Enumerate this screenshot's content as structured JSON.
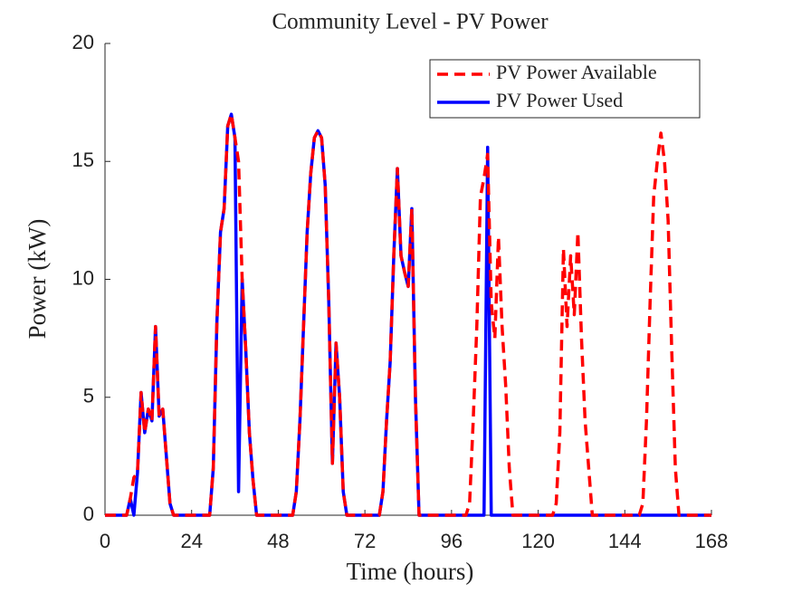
{
  "chart_data": {
    "type": "line",
    "title": "Community Level - PV Power",
    "x_label": "Time (hours)",
    "y_label": "Power (kW)",
    "x": [
      0,
      1,
      2,
      3,
      4,
      5,
      6,
      7,
      8,
      9,
      10,
      11,
      12,
      13,
      14,
      15,
      16,
      17,
      18,
      19,
      20,
      21,
      22,
      23,
      24,
      25,
      26,
      27,
      28,
      29,
      30,
      31,
      32,
      33,
      34,
      35,
      36,
      37,
      38,
      39,
      40,
      41,
      42,
      43,
      44,
      45,
      46,
      47,
      48,
      49,
      50,
      51,
      52,
      53,
      54,
      55,
      56,
      57,
      58,
      59,
      60,
      61,
      62,
      63,
      64,
      65,
      66,
      67,
      68,
      69,
      70,
      71,
      72,
      73,
      74,
      75,
      76,
      77,
      78,
      79,
      80,
      81,
      82,
      83,
      84,
      85,
      86,
      87,
      88,
      89,
      90,
      91,
      92,
      93,
      94,
      95,
      96,
      97,
      98,
      99,
      100,
      101,
      102,
      103,
      104,
      105,
      106,
      107,
      108,
      109,
      110,
      111,
      112,
      113,
      114,
      115,
      116,
      117,
      118,
      119,
      120,
      121,
      122,
      123,
      124,
      125,
      126,
      127,
      128,
      129,
      130,
      131,
      132,
      133,
      134,
      135,
      136,
      137,
      138,
      139,
      140,
      141,
      142,
      143,
      144,
      145,
      146,
      147,
      148,
      149,
      150,
      151,
      152,
      153,
      154,
      155,
      156,
      157,
      158,
      159,
      160,
      161,
      162,
      163,
      164,
      165,
      166,
      167,
      168
    ],
    "series": [
      {
        "name": "PV Power Available",
        "color": "#ff0000",
        "dash": true,
        "values": [
          0,
          0,
          0,
          0,
          0,
          0,
          0,
          0.7,
          1.6,
          1.8,
          5.2,
          3.5,
          4.5,
          4,
          8,
          4.2,
          4.5,
          2.5,
          0.5,
          0,
          0,
          0,
          0,
          0,
          0,
          0,
          0,
          0,
          0,
          0,
          2,
          8.2,
          12,
          13,
          16.5,
          17,
          16,
          15,
          10,
          7,
          3.5,
          1.5,
          0,
          0,
          0,
          0,
          0,
          0,
          0,
          0,
          0,
          0,
          0,
          1,
          4,
          8,
          12,
          14.5,
          16,
          16.3,
          16,
          14,
          9,
          2.2,
          7.3,
          5,
          1,
          0,
          0,
          0,
          0,
          0,
          0,
          0,
          0,
          0,
          0,
          1,
          4,
          6.5,
          11,
          14.7,
          11,
          10.3,
          9.7,
          13,
          5,
          0,
          0,
          0,
          0,
          0,
          0,
          0,
          0,
          0,
          0,
          0,
          0,
          0,
          0,
          0.5,
          4,
          8,
          13.5,
          14.3,
          15.3,
          9,
          7.5,
          11.8,
          8,
          5.5,
          2,
          0,
          0,
          0,
          0,
          0,
          0,
          0,
          0,
          0,
          0,
          0,
          0,
          0.5,
          3.5,
          11.3,
          8,
          11,
          8.5,
          12,
          7.5,
          4,
          2,
          0,
          0,
          0,
          0,
          0,
          0,
          0,
          0,
          0,
          0,
          0,
          0,
          0,
          0,
          0.5,
          4,
          9,
          13.5,
          15,
          16.2,
          15,
          12.5,
          7,
          2,
          0,
          0,
          0,
          0,
          0,
          0,
          0,
          0,
          0,
          0
        ]
      },
      {
        "name": "PV Power Used",
        "color": "#0000ff",
        "dash": false,
        "values": [
          0,
          0,
          0,
          0,
          0,
          0,
          0,
          0.7,
          0,
          1.8,
          5.2,
          3.5,
          4.5,
          4,
          8,
          4.2,
          4.5,
          2.5,
          0.5,
          0,
          0,
          0,
          0,
          0,
          0,
          0,
          0,
          0,
          0,
          0,
          2,
          8.2,
          12,
          13,
          16.5,
          17,
          16,
          1,
          10,
          7,
          3.5,
          1.5,
          0,
          0,
          0,
          0,
          0,
          0,
          0,
          0,
          0,
          0,
          0,
          1,
          4,
          8,
          12,
          14.5,
          16,
          16.3,
          16,
          14,
          9,
          2.2,
          7.3,
          5,
          1,
          0,
          0,
          0,
          0,
          0,
          0,
          0,
          0,
          0,
          0,
          1,
          4,
          6.5,
          11,
          14.7,
          11,
          10.3,
          9.7,
          13,
          5,
          0,
          0,
          0,
          0,
          0,
          0,
          0,
          0,
          0,
          0,
          0,
          0,
          0,
          0,
          0,
          0,
          0,
          0,
          0,
          15.6,
          0,
          0,
          0,
          0,
          0,
          0,
          0,
          0,
          0,
          0,
          0,
          0,
          0,
          0,
          0,
          0,
          0,
          0,
          0,
          0,
          0,
          0,
          0,
          0,
          0,
          0,
          0,
          0,
          0,
          0,
          0,
          0,
          0,
          0,
          0,
          0,
          0,
          0,
          0,
          0,
          0,
          0,
          0,
          0,
          0,
          0,
          0,
          0,
          0,
          0,
          0,
          0,
          0,
          0,
          0,
          0,
          0,
          0,
          0,
          0,
          0,
          0
        ]
      }
    ],
    "xlim": [
      0,
      168
    ],
    "ylim": [
      0,
      20
    ],
    "xticks": [
      0,
      24,
      48,
      72,
      96,
      120,
      144,
      168
    ],
    "yticks": [
      0,
      5,
      10,
      15,
      20
    ],
    "legend": "upper right"
  }
}
